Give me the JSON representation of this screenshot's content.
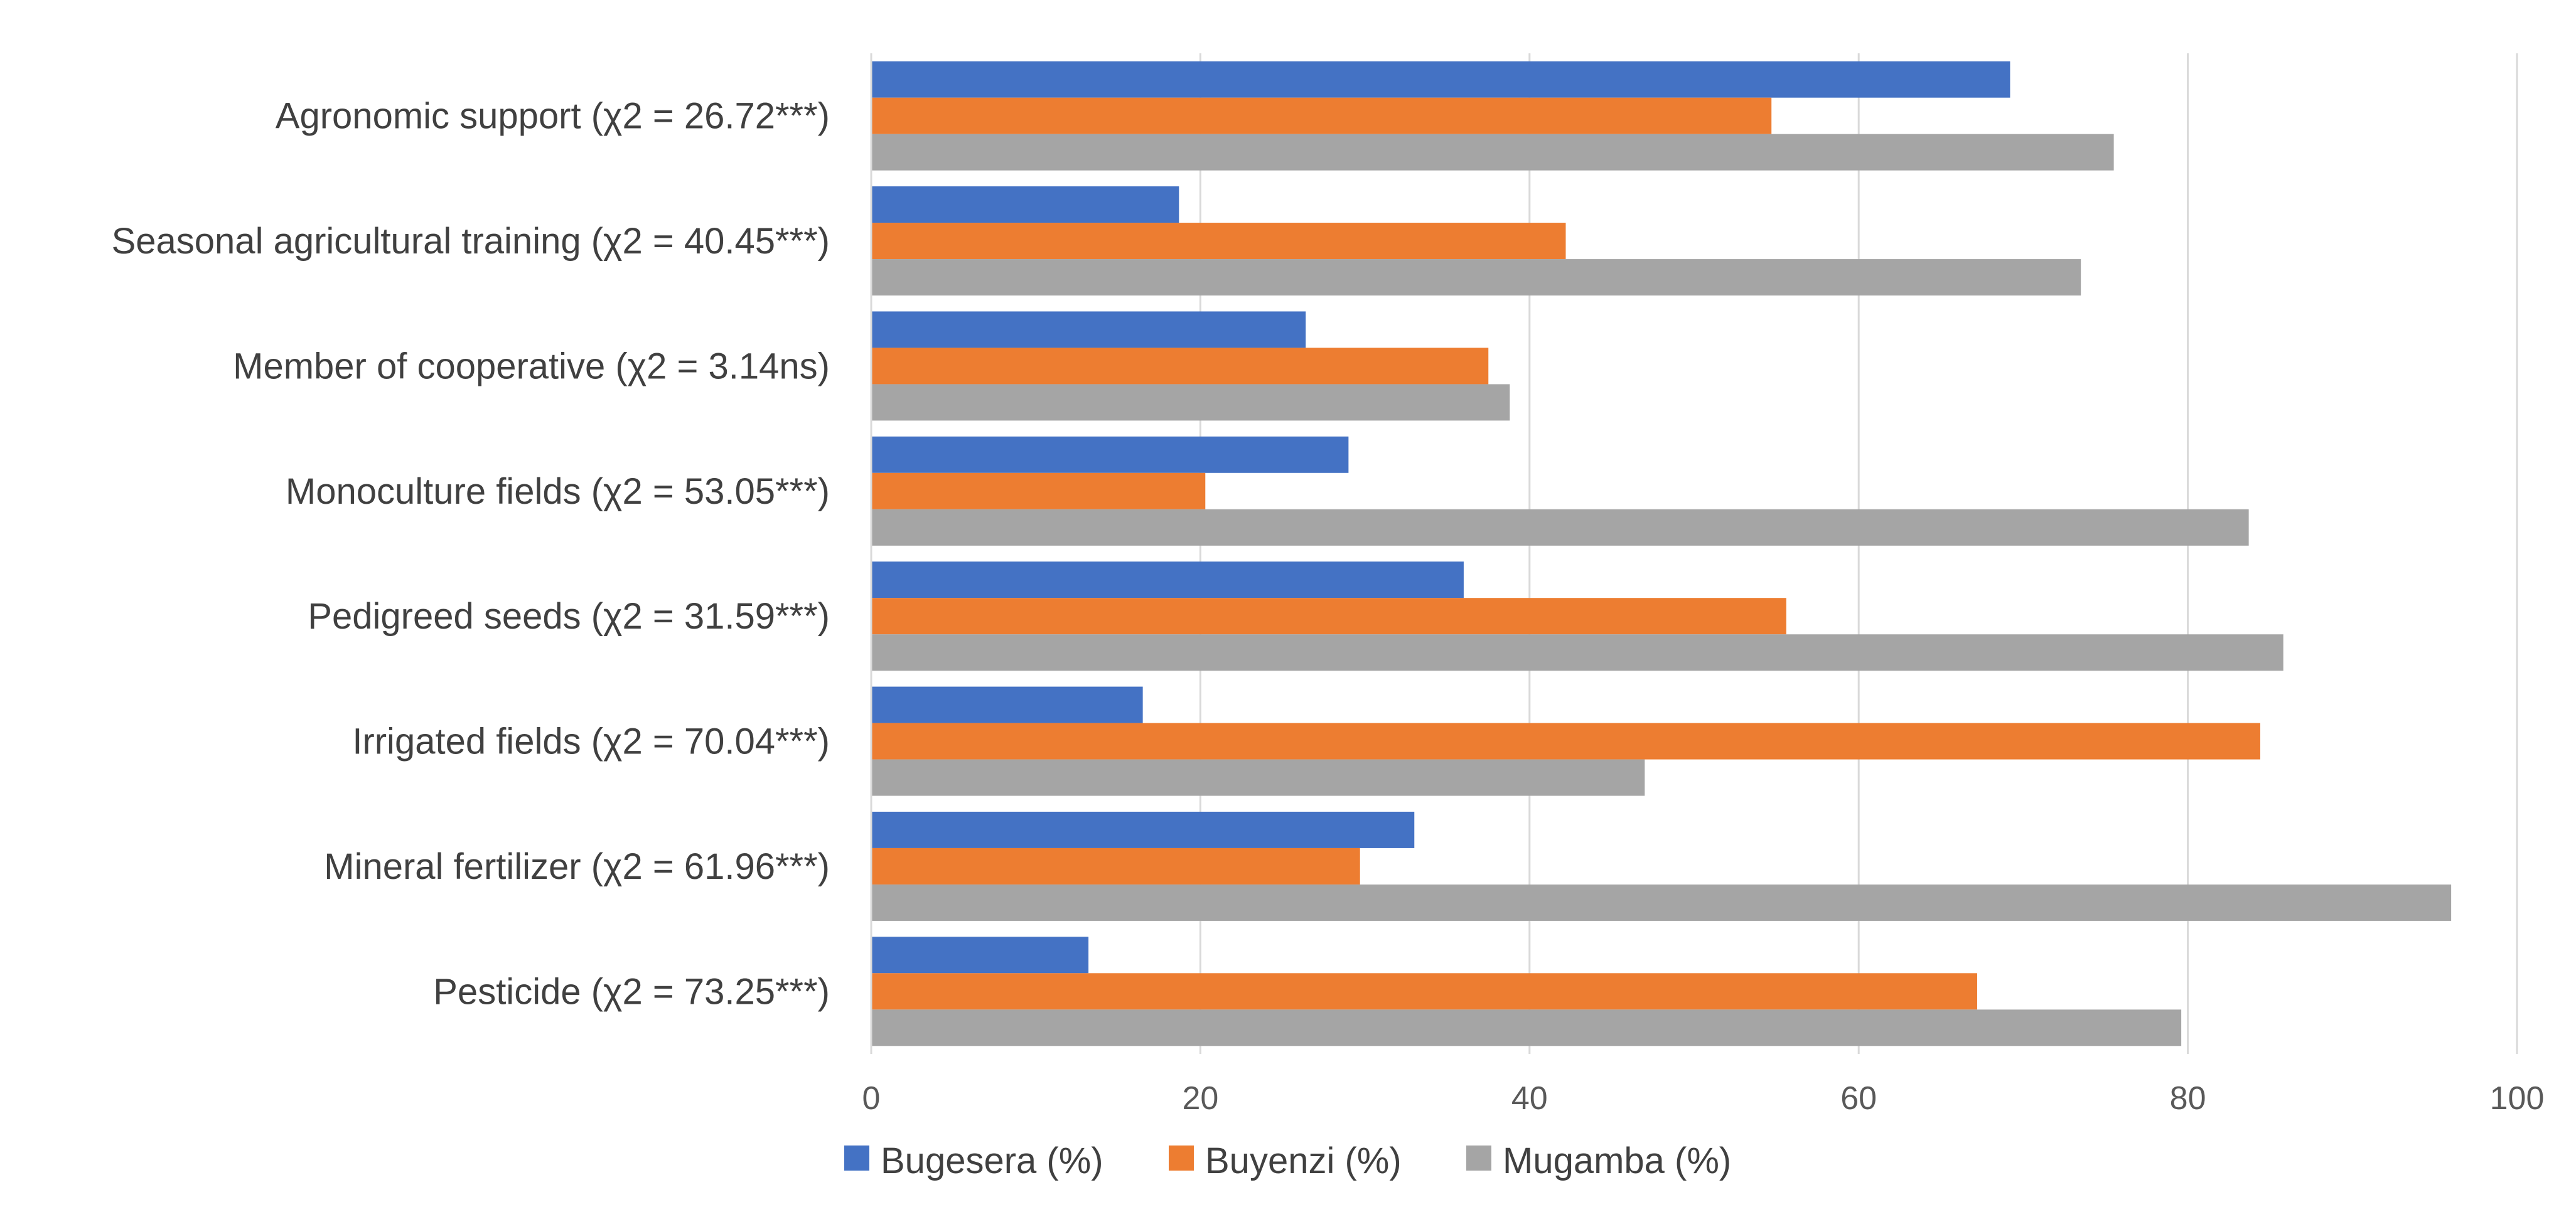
{
  "chart_data": {
    "type": "bar",
    "orientation": "horizontal",
    "title": "",
    "xlabel": "",
    "ylabel": "",
    "xlim": [
      0,
      100
    ],
    "x_ticks": [
      "0",
      "20",
      "40",
      "60",
      "80",
      "100"
    ],
    "grid": true,
    "legend_position": "bottom",
    "categories": [
      "Agronomic support (χ2 = 26.72***)",
      "Seasonal agricultural training (χ2 = 40.45***)",
      "Member of cooperative (χ2 = 3.14ns)",
      "Monoculture fields (χ2 = 53.05***)",
      "Pedigreed seeds (χ2 = 31.59***)",
      "Irrigated fields (χ2 = 70.04***)",
      "Mineral fertilizer (χ2 = 61.96***)",
      "Pesticide (χ2 = 73.25***)"
    ],
    "series": [
      {
        "name": "Bugesera (%)",
        "color": "#4472C4",
        "values": [
          69.2,
          18.7,
          26.4,
          29.0,
          36.0,
          16.5,
          33.0,
          13.2
        ]
      },
      {
        "name": "Buyenzi (%)",
        "color": "#ED7D31",
        "values": [
          54.7,
          42.2,
          37.5,
          20.3,
          55.6,
          84.4,
          29.7,
          67.2
        ]
      },
      {
        "name": "Mugamba (%)",
        "color": "#A5A5A5",
        "values": [
          75.5,
          73.5,
          38.8,
          83.7,
          85.8,
          47.0,
          96.0,
          79.6
        ]
      }
    ]
  }
}
